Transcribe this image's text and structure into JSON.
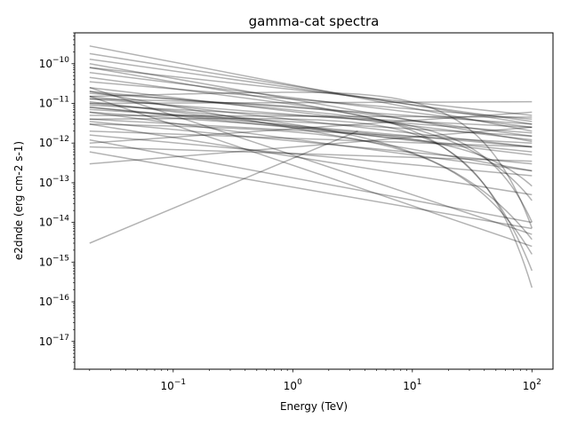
{
  "chart_data": {
    "type": "line",
    "title": "gamma-cat spectra",
    "xlabel": "Energy (TeV)",
    "ylabel": "e2dnde (erg cm-2 s-1)",
    "xscale": "log",
    "yscale": "log",
    "xlim": [
      0.015,
      150
    ],
    "ylim": [
      2e-18,
      6e-10
    ],
    "grid": false,
    "legend": "none",
    "line_color": "#000000",
    "line_alpha": 0.3,
    "x_ticks": [
      {
        "value": 0.1,
        "base": "10",
        "exp": "−1"
      },
      {
        "value": 1,
        "base": "10",
        "exp": "0"
      },
      {
        "value": 10,
        "base": "10",
        "exp": "1"
      },
      {
        "value": 100,
        "base": "10",
        "exp": "2"
      }
    ],
    "y_ticks": [
      {
        "value": 1e-10,
        "base": "10",
        "exp": "−10"
      },
      {
        "value": 1e-11,
        "base": "10",
        "exp": "−11"
      },
      {
        "value": 1e-12,
        "base": "10",
        "exp": "−12"
      },
      {
        "value": 1e-13,
        "base": "10",
        "exp": "−13"
      },
      {
        "value": 1e-14,
        "base": "10",
        "exp": "−14"
      },
      {
        "value": 1e-15,
        "base": "10",
        "exp": "−15"
      },
      {
        "value": 1e-16,
        "base": "10",
        "exp": "−16"
      },
      {
        "value": 1e-17,
        "base": "10",
        "exp": "−17"
      }
    ],
    "x_range": [
      0.02,
      100
    ],
    "series": [
      {
        "kind": "pl",
        "y0": 2.8e-10,
        "y1": 2e-12
      },
      {
        "kind": "pl",
        "y0": 1.8e-10,
        "y1": 3e-12
      },
      {
        "kind": "pl",
        "y0": 1.3e-10,
        "y1": 3.5e-12
      },
      {
        "kind": "pl",
        "y0": 1e-10,
        "y1": 1.1e-12
      },
      {
        "kind": "pl",
        "y0": 8e-11,
        "y1": 5e-12
      },
      {
        "kind": "pl",
        "y0": 6e-11,
        "y1": 2.5e-12
      },
      {
        "kind": "pl",
        "y0": 4.5e-11,
        "y1": 1.5e-12
      },
      {
        "kind": "pl",
        "y0": 3.5e-11,
        "y1": 4e-12
      },
      {
        "kind": "pl",
        "y0": 2.5e-11,
        "y1": 1.2e-12
      },
      {
        "kind": "pl",
        "y0": 2e-11,
        "y1": 2e-13
      },
      {
        "kind": "pl",
        "y0": 1.8e-11,
        "y1": 3e-12
      },
      {
        "kind": "pl",
        "y0": 1.5e-11,
        "y1": 8e-13
      },
      {
        "kind": "pl",
        "y0": 1.3e-11,
        "y1": 1.8e-12
      },
      {
        "kind": "pl",
        "y0": 1.1e-11,
        "y1": 5e-13
      },
      {
        "kind": "pl",
        "y0": 1e-11,
        "y1": 1.1e-11
      },
      {
        "kind": "pl",
        "y0": 9e-12,
        "y1": 2.5e-12
      },
      {
        "kind": "pl",
        "y0": 8e-12,
        "y1": 6e-13
      },
      {
        "kind": "pl",
        "y0": 7e-12,
        "y1": 1.5e-12
      },
      {
        "kind": "pl",
        "y0": 6e-12,
        "y1": 2e-13
      },
      {
        "kind": "pl",
        "y0": 5e-12,
        "y1": 4.5e-12
      },
      {
        "kind": "pl",
        "y0": 4e-12,
        "y1": 1e-12
      },
      {
        "kind": "pl",
        "y0": 3.5e-12,
        "y1": 3e-13
      },
      {
        "kind": "pl",
        "y0": 3e-12,
        "y1": 5e-14
      },
      {
        "kind": "pl",
        "y0": 2e-12,
        "y1": 8e-13
      },
      {
        "kind": "pl",
        "y0": 1.6e-12,
        "y1": 1.5e-13
      },
      {
        "kind": "pl",
        "y0": 1.2e-12,
        "y1": 1e-14
      },
      {
        "kind": "pl",
        "y0": 1e-12,
        "y1": 6e-12
      },
      {
        "kind": "pl",
        "y0": 8e-13,
        "y1": 3.5e-13
      },
      {
        "kind": "pl",
        "y0": 6e-13,
        "y1": 7e-15
      },
      {
        "kind": "pl",
        "y0": 3e-13,
        "y1": 2.5e-12
      },
      {
        "kind": "pl",
        "y0": 2.5e-11,
        "y1": 5e-15
      },
      {
        "kind": "pl",
        "y0": 1.5e-11,
        "y1": 2.5e-15
      },
      {
        "kind": "pl",
        "y0": 8e-12,
        "y1": 8e-13
      },
      {
        "kind": "pl",
        "y0": 3e-15,
        "y1": 2e-12,
        "x1": 3.5
      },
      {
        "kind": "ecpl",
        "y0": 1.5e-11,
        "y1": 3e-11,
        "ec": 12,
        "b": 1
      },
      {
        "kind": "ecpl",
        "y0": 8e-11,
        "y1": 1e-12,
        "ec": 30,
        "b": 1
      },
      {
        "kind": "ecpl",
        "y0": 6e-12,
        "y1": 1e-12,
        "ec": 40,
        "b": 1
      },
      {
        "kind": "ecpl",
        "y0": 1.3e-11,
        "y1": 8e-12,
        "ec": 6,
        "b": 0.8
      },
      {
        "kind": "ecpl",
        "y0": 4e-12,
        "y1": 5e-12,
        "ec": 10,
        "b": 1
      },
      {
        "kind": "ecpl",
        "y0": 2e-11,
        "y1": 2e-12,
        "ec": 25,
        "b": 1.2
      },
      {
        "kind": "ecpl",
        "y0": 3e-12,
        "y1": 2e-12,
        "ec": 6,
        "b": 0.7
      },
      {
        "kind": "ecpl",
        "y0": 1e-11,
        "y1": 1.5e-12,
        "ec": 5,
        "b": 0.6
      }
    ]
  }
}
